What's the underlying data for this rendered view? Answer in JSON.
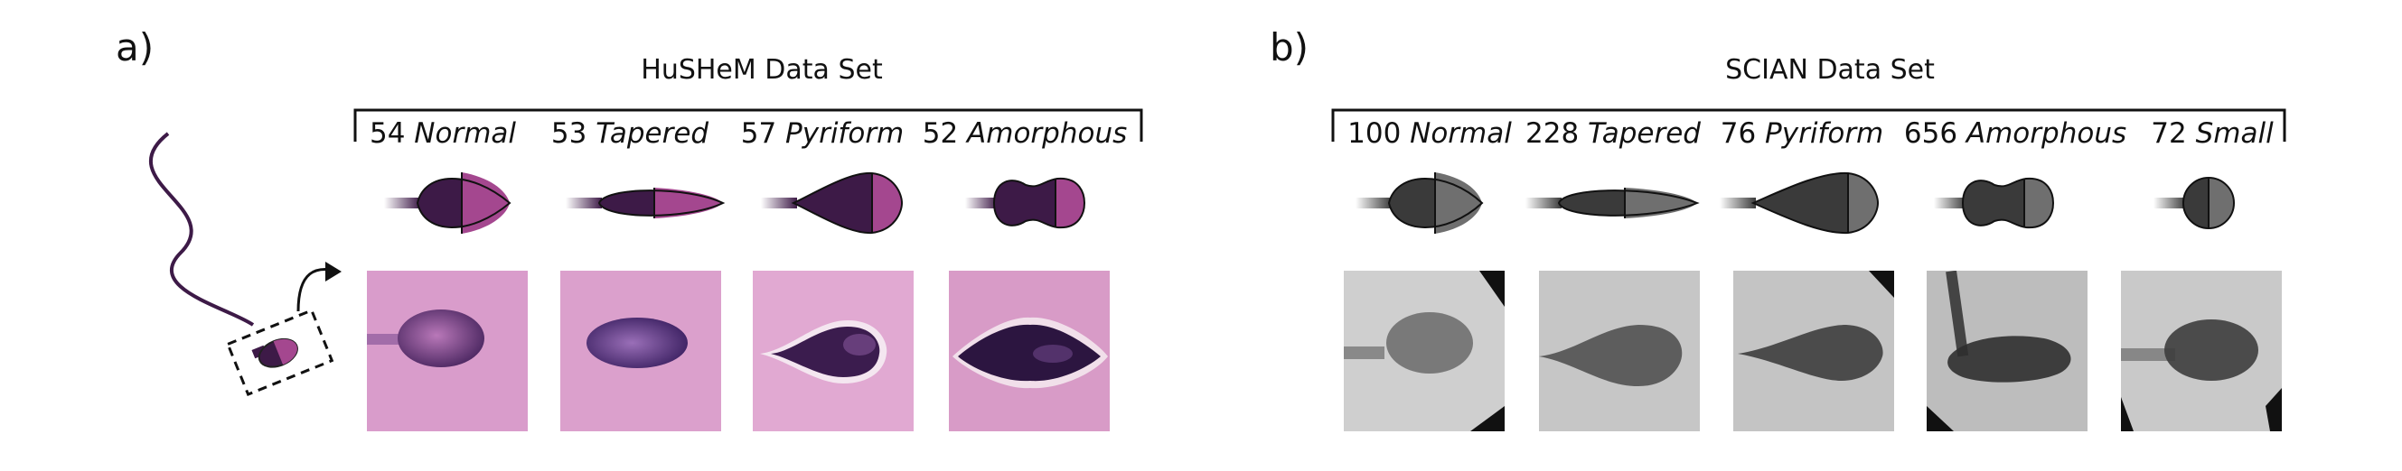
{
  "panel_a": {
    "label": "a)",
    "title": "HuSHeM Data Set",
    "classes": [
      {
        "count": "54",
        "name": "Normal"
      },
      {
        "count": "53",
        "name": "Tapered"
      },
      {
        "count": "57",
        "name": "Pyriform"
      },
      {
        "count": "52",
        "name": "Amorphous"
      }
    ]
  },
  "panel_b": {
    "label": "b)",
    "title": "SCIAN Data Set",
    "classes": [
      {
        "count": "100",
        "name": "Normal"
      },
      {
        "count": "228",
        "name": "Tapered"
      },
      {
        "count": "76",
        "name": "Pyriform"
      },
      {
        "count": "656",
        "name": "Amorphous"
      },
      {
        "count": "72",
        "name": "Small"
      }
    ]
  },
  "colors": {
    "hushem_dark": "#3d1a47",
    "hushem_light": "#a4478f",
    "hushem_photo_bg": "#d99ccb",
    "scian_dark": "#3a3a3a",
    "scian_light": "#6f6f6f",
    "scian_photo_bg": "#c8c8c8"
  }
}
